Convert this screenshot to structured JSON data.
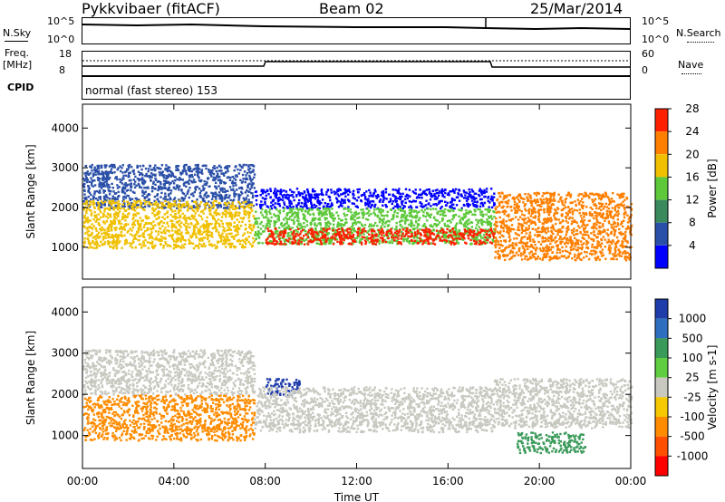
{
  "header": {
    "station": "Pykkvibaer (fitACF)",
    "beam": "Beam 02",
    "date": "25/Mar/2014"
  },
  "top_panels": {
    "nsky_label": "N.Sky",
    "nsky_top": "10^5",
    "nsky_bottom": "10^0",
    "nsearch_label": "N.Search",
    "nsearch_top": "10^5",
    "nsearch_bottom": "10^0",
    "freq_label_1": "Freq.",
    "freq_label_2": "[MHz]",
    "freq_top": "18",
    "freq_bottom": "8",
    "nave_label": "Nave",
    "nave_top": "60",
    "nave_bottom": "0",
    "cpid_label": "CPID",
    "cpid_value": "normal (fast stereo) 153"
  },
  "chart_data": [
    {
      "type": "heatmap",
      "panel": "power",
      "ylabel": "Slant Range [km]",
      "y_ticks": [
        "1000",
        "2000",
        "3000",
        "4000"
      ],
      "ylim": [
        200,
        4600
      ],
      "x_ticks": [
        "00:00",
        "04:00",
        "08:00",
        "12:00",
        "16:00",
        "20:00",
        "00:00"
      ],
      "colorbar_label": "Power [dB]",
      "colorbar_ticks": [
        "4",
        "8",
        "12",
        "16",
        "20",
        "24",
        "28"
      ],
      "colors": [
        "#0000ff",
        "#2a4fa8",
        "#3a8a5e",
        "#5cc83a",
        "#f0c000",
        "#ff7f00",
        "#ff2000"
      ],
      "echo_bands": [
        {
          "x": [
            0.0,
            7.5
          ],
          "y": [
            2000,
            3100
          ],
          "level": 1
        },
        {
          "x": [
            0.0,
            7.5
          ],
          "y": [
            1000,
            2200
          ],
          "level": 4
        },
        {
          "x": [
            7.5,
            18.0
          ],
          "y": [
            2000,
            2500
          ],
          "level": 0
        },
        {
          "x": [
            7.5,
            18.0
          ],
          "y": [
            1100,
            2000
          ],
          "level": 3
        },
        {
          "x": [
            8.0,
            18.0
          ],
          "y": [
            1100,
            1500
          ],
          "level": 6
        },
        {
          "x": [
            18.0,
            24.0
          ],
          "y": [
            700,
            2400
          ],
          "level": 5
        }
      ]
    },
    {
      "type": "heatmap",
      "panel": "velocity",
      "ylabel": "Slant Range [km]",
      "y_ticks": [
        "1000",
        "2000",
        "3000",
        "4000"
      ],
      "ylim": [
        200,
        4600
      ],
      "x_ticks": [
        "00:00",
        "04:00",
        "08:00",
        "12:00",
        "16:00",
        "20:00",
        "00:00"
      ],
      "xlabel": "Time UT",
      "colorbar_label": "Velocity [m s-1]",
      "colorbar_ticks": [
        "1000",
        "500",
        "100",
        "25",
        "-25",
        "-100",
        "-500",
        "-1000"
      ],
      "colors": [
        "#1e3caa",
        "#2e6fbf",
        "#3a9a5a",
        "#60cc40",
        "#c8c8c0",
        "#f5c800",
        "#ff8c00",
        "#ff5000",
        "#ff0000"
      ],
      "echo_bands": [
        {
          "x": [
            0.0,
            7.5
          ],
          "y": [
            2000,
            3100
          ],
          "level": 4
        },
        {
          "x": [
            0.0,
            7.5
          ],
          "y": [
            900,
            2000
          ],
          "level": 6
        },
        {
          "x": [
            8.0,
            9.5
          ],
          "y": [
            2000,
            2400
          ],
          "level": 0
        },
        {
          "x": [
            7.5,
            18.0
          ],
          "y": [
            1100,
            2200
          ],
          "level": 4
        },
        {
          "x": [
            19.0,
            22.0
          ],
          "y": [
            600,
            1100
          ],
          "level": 2
        },
        {
          "x": [
            18.0,
            24.0
          ],
          "y": [
            1200,
            2400
          ],
          "level": 4
        }
      ]
    }
  ]
}
